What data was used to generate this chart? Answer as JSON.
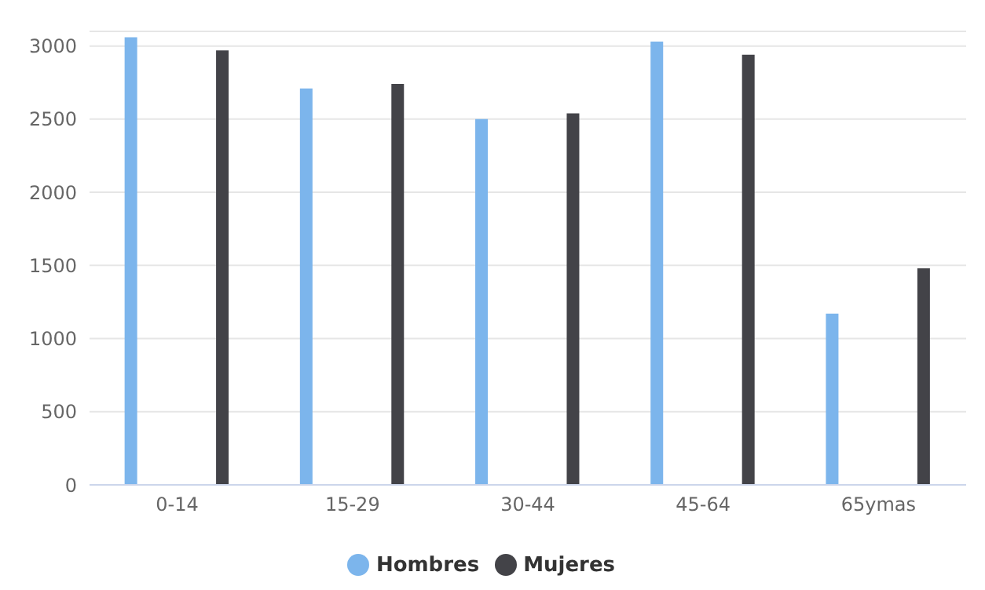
{
  "chart_data": {
    "type": "bar",
    "categories": [
      "0-14",
      "15-29",
      "30-44",
      "45-64",
      "65ymas"
    ],
    "series": [
      {
        "name": "Hombres",
        "color": "#7cb5ec",
        "values": [
          3060,
          2710,
          2500,
          3030,
          1170
        ]
      },
      {
        "name": "Mujeres",
        "color": "#434348",
        "values": [
          2970,
          2740,
          2540,
          2940,
          1480
        ]
      }
    ],
    "ylim": [
      0,
      3100
    ],
    "yticks": [
      0,
      500,
      1000,
      1500,
      2000,
      2500,
      3000
    ],
    "grid": "y",
    "legend": "bottom"
  }
}
